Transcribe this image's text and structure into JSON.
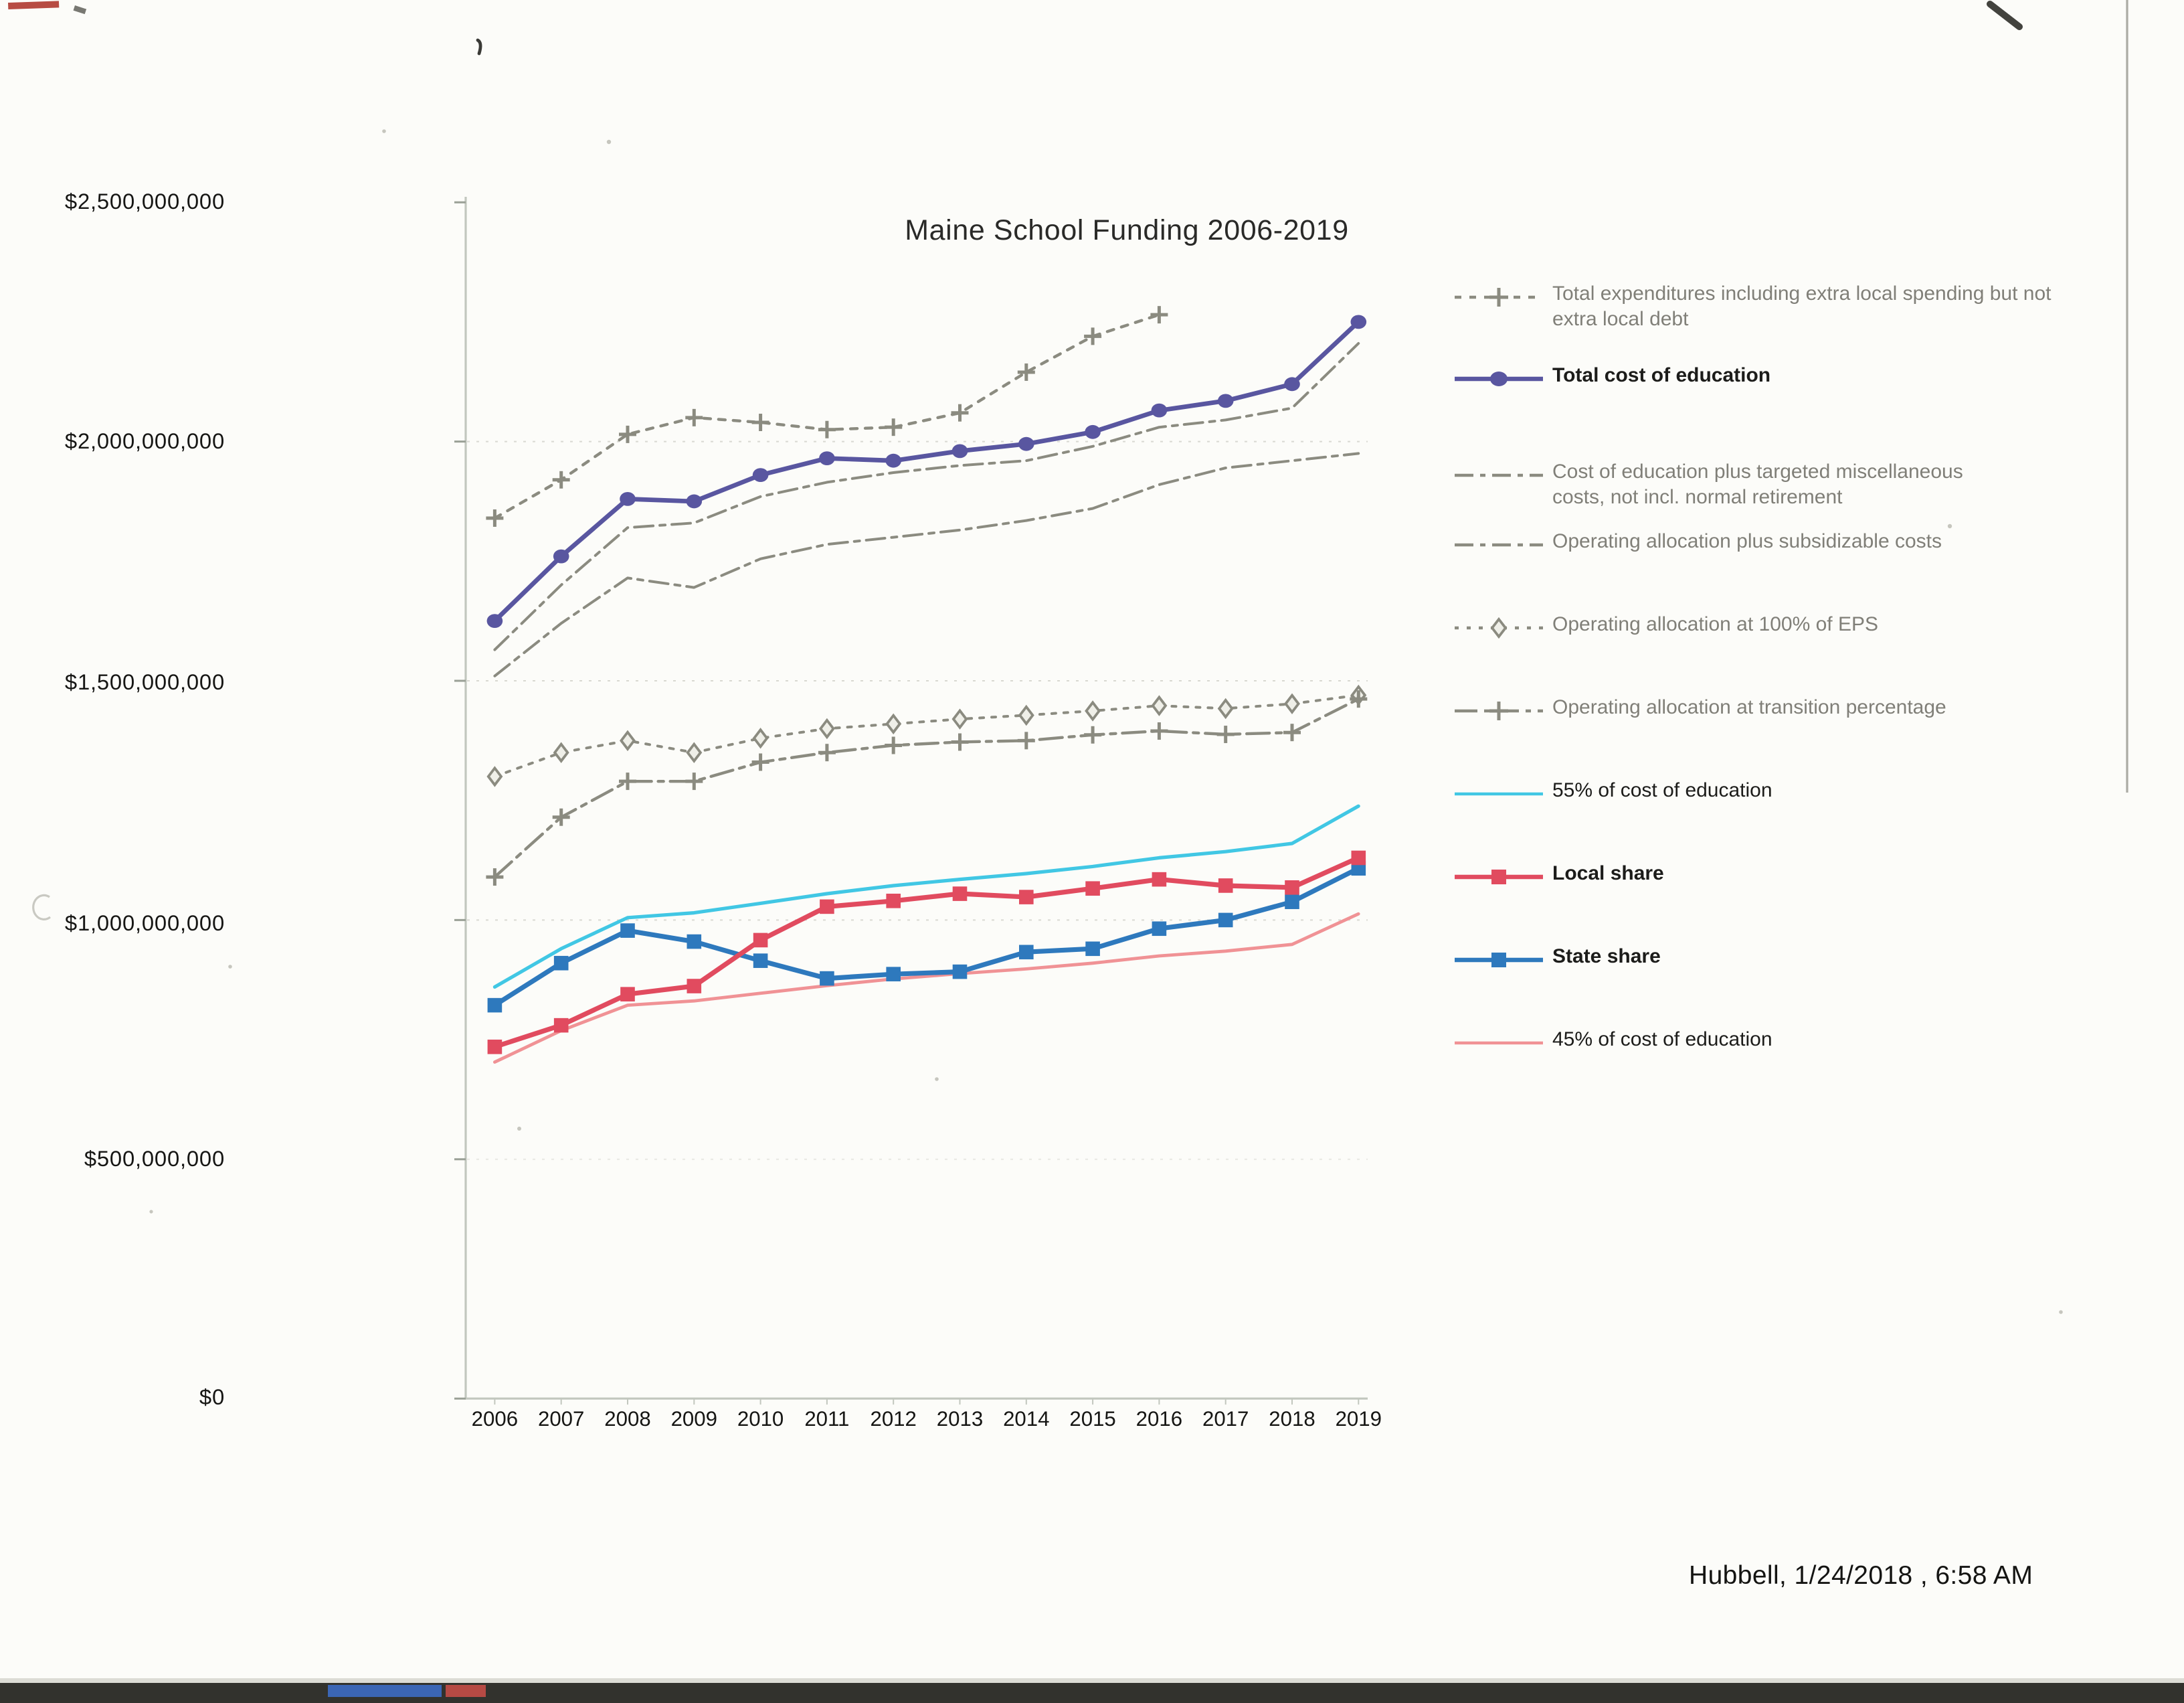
{
  "page": {
    "footer": "Hubbell, 1/24/2018  , 6:58 AM"
  },
  "chart_data": {
    "type": "line",
    "title": "Maine School Funding 2006-2019",
    "x_labels": [
      "2006",
      "2007",
      "2008",
      "2009",
      "2010",
      "2011",
      "2012",
      "2013",
      "2014",
      "2015",
      "2016",
      "2017",
      "2018",
      "2019"
    ],
    "y_axis": {
      "tick_labels": [
        "$2,500,000,000",
        "$2,000,000,000",
        "$1,500,000,000",
        "$1,000,000,000",
        "$500,000,000",
        "$0"
      ],
      "tick_values": [
        2500,
        2000,
        1500,
        1000,
        500,
        0
      ],
      "ylim": [
        0,
        2500
      ],
      "unit": "millions of USD"
    },
    "grid": "faint dotted horizontal gridlines",
    "legend_position": "right",
    "series": [
      {
        "id": "total-expenditures",
        "legend_label": "Total expenditures including extra local spending but not extra local debt",
        "color": "#8b8b80",
        "style": "dotted",
        "marker": "plus",
        "bold": false,
        "values": [
          1840,
          1920,
          2015,
          2050,
          2040,
          2025,
          2030,
          2060,
          2145,
          2220,
          2265,
          null,
          null,
          null
        ]
      },
      {
        "id": "total-cost",
        "legend_label": "Total cost of education",
        "color": "#5956a0",
        "style": "solid",
        "marker": "circle",
        "bold": true,
        "values": [
          1625,
          1760,
          1880,
          1875,
          1930,
          1965,
          1960,
          1980,
          1995,
          2020,
          2065,
          2085,
          2120,
          2250
        ]
      },
      {
        "id": "cost-plus-misc",
        "legend_label": "Cost of education plus targeted miscellaneous costs, not incl. normal retirement",
        "color": "#8b8b80",
        "style": "dashdot",
        "marker": "none",
        "bold": false,
        "values": [
          1565,
          1700,
          1820,
          1830,
          1885,
          1915,
          1935,
          1950,
          1960,
          1990,
          2030,
          2045,
          2070,
          2205
        ]
      },
      {
        "id": "oper-subsid",
        "legend_label": "Operating allocation plus subsidizable costs",
        "color": "#8b8b80",
        "style": "dashdot",
        "marker": "none",
        "bold": false,
        "values": [
          1510,
          1620,
          1715,
          1695,
          1755,
          1785,
          1800,
          1815,
          1835,
          1860,
          1910,
          1945,
          1960,
          1975
        ]
      },
      {
        "id": "eps-100",
        "legend_label": "Operating allocation at 100% of EPS",
        "color": "#8b8b80",
        "style": "dotted-fine",
        "marker": "diamond",
        "bold": false,
        "values": [
          1300,
          1350,
          1375,
          1350,
          1380,
          1400,
          1410,
          1420,
          1428,
          1437,
          1448,
          1442,
          1452,
          1470
        ]
      },
      {
        "id": "transition",
        "legend_label": "Operating allocation at transition percentage",
        "color": "#8b8b80",
        "style": "dashdot-long",
        "marker": "plus",
        "bold": false,
        "values": [
          1090,
          1215,
          1290,
          1290,
          1330,
          1350,
          1365,
          1372,
          1375,
          1387,
          1395,
          1388,
          1392,
          1462
        ]
      },
      {
        "id": "pct55",
        "legend_label": "55% of cost of education",
        "color": "#41c7e4",
        "style": "solid",
        "marker": "none",
        "bold": false,
        "values": [
          860,
          940,
          1005,
          1015,
          1035,
          1055,
          1072,
          1085,
          1097,
          1112,
          1130,
          1143,
          1160,
          1238
        ]
      },
      {
        "id": "local-share",
        "legend_label": "Local share",
        "color": "#e14b5f",
        "style": "solid",
        "marker": "square",
        "bold": true,
        "values": [
          735,
          780,
          845,
          862,
          958,
          1028,
          1040,
          1055,
          1048,
          1066,
          1085,
          1072,
          1068,
          1130
        ]
      },
      {
        "id": "state-share",
        "legend_label": "State share",
        "color": "#2e79bd",
        "style": "solid",
        "marker": "square",
        "bold": true,
        "values": [
          822,
          910,
          978,
          955,
          915,
          878,
          887,
          892,
          933,
          940,
          982,
          1000,
          1038,
          1108
        ]
      },
      {
        "id": "pct45",
        "legend_label": "45% of cost of education",
        "color": "#f09295",
        "style": "solid",
        "marker": "none",
        "bold": false,
        "values": [
          703,
          769,
          822,
          831,
          847,
          863,
          877,
          888,
          898,
          910,
          925,
          935,
          949,
          1013
        ]
      }
    ]
  }
}
